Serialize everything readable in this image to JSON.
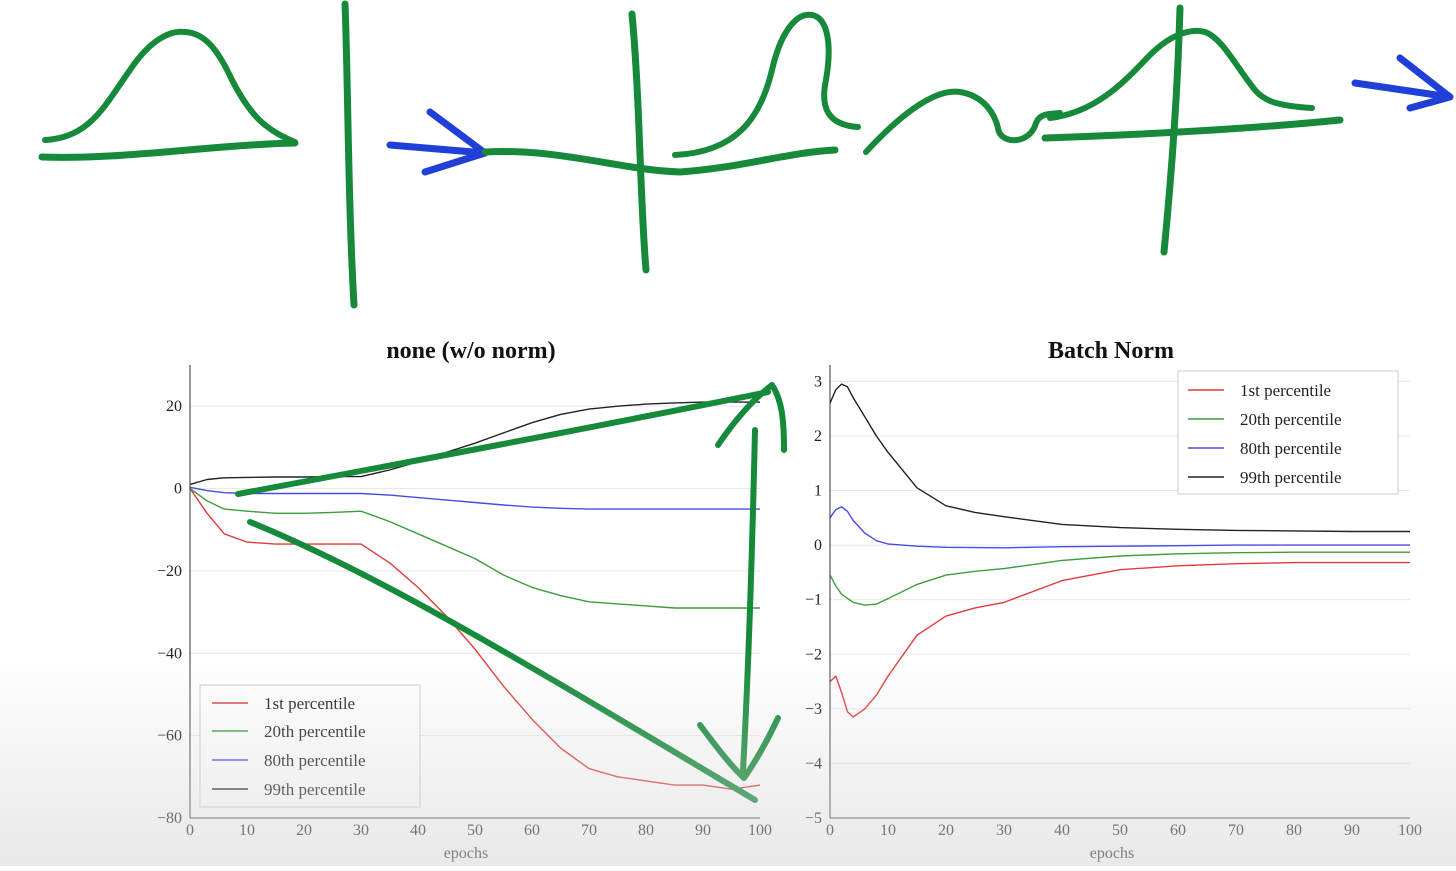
{
  "colors": {
    "ink_green": "#168a3a",
    "ink_blue": "#1f3fd6",
    "p1": "#e03b3b",
    "p20": "#3f9b3f",
    "p80": "#4a4ae6",
    "p99": "#222222"
  },
  "chart_data": [
    {
      "type": "line",
      "title": "none (w/o norm)",
      "xlabel": "epochs",
      "ylabel": "",
      "xlim": [
        0,
        100
      ],
      "ylim": [
        -80,
        30
      ],
      "xticks": [
        0,
        10,
        20,
        30,
        40,
        50,
        60,
        70,
        80,
        90,
        100
      ],
      "yticks": [
        -80,
        -60,
        -40,
        -20,
        0,
        20
      ],
      "grid": true,
      "legend_position": "lower-left",
      "series": [
        {
          "name": "1st percentile",
          "color": "#e03b3b",
          "x": [
            0,
            3,
            6,
            10,
            15,
            20,
            25,
            30,
            35,
            40,
            45,
            50,
            55,
            60,
            65,
            70,
            75,
            80,
            85,
            90,
            95,
            100
          ],
          "y": [
            0,
            -6,
            -11,
            -13,
            -13.5,
            -13.5,
            -13.5,
            -13.5,
            -18,
            -24,
            -31,
            -39,
            -48,
            -56,
            -63,
            -68,
            -70,
            -71,
            -72,
            -72,
            -73,
            -72
          ]
        },
        {
          "name": "20th percentile",
          "color": "#3f9b3f",
          "x": [
            0,
            3,
            6,
            10,
            15,
            20,
            25,
            30,
            35,
            40,
            45,
            50,
            55,
            60,
            65,
            70,
            75,
            80,
            85,
            90,
            95,
            100
          ],
          "y": [
            0,
            -3,
            -5,
            -5.5,
            -6,
            -6,
            -5.8,
            -5.5,
            -8,
            -11,
            -14,
            -17,
            -21,
            -24,
            -26,
            -27.5,
            -28,
            -28.5,
            -29,
            -29,
            -29,
            -29
          ]
        },
        {
          "name": "80th percentile",
          "color": "#4a4ae6",
          "x": [
            0,
            3,
            6,
            10,
            15,
            20,
            25,
            30,
            35,
            40,
            45,
            50,
            55,
            60,
            65,
            70,
            75,
            80,
            85,
            90,
            95,
            100
          ],
          "y": [
            0.3,
            -0.5,
            -1,
            -1.2,
            -1.2,
            -1.2,
            -1.2,
            -1.2,
            -1.6,
            -2.2,
            -2.8,
            -3.4,
            -4,
            -4.5,
            -4.8,
            -5,
            -5,
            -5,
            -5,
            -5,
            -5,
            -5
          ]
        },
        {
          "name": "99th percentile",
          "color": "#222222",
          "x": [
            0,
            3,
            6,
            10,
            15,
            20,
            25,
            30,
            35,
            40,
            45,
            50,
            55,
            60,
            65,
            70,
            75,
            80,
            85,
            90,
            95,
            100
          ],
          "y": [
            1,
            2.2,
            2.6,
            2.7,
            2.8,
            2.8,
            2.9,
            2.9,
            4.5,
            6.5,
            8.8,
            11,
            13.5,
            16,
            18,
            19.3,
            20,
            20.5,
            20.8,
            21,
            21,
            21
          ]
        }
      ]
    },
    {
      "type": "line",
      "title": "Batch Norm",
      "xlabel": "epochs",
      "ylabel": "",
      "xlim": [
        0,
        100
      ],
      "ylim": [
        -5,
        3.3
      ],
      "xticks": [
        0,
        10,
        20,
        30,
        40,
        50,
        60,
        70,
        80,
        90,
        100
      ],
      "yticks": [
        -5,
        -4,
        -3,
        -2,
        -1,
        0,
        1,
        2,
        3
      ],
      "grid": true,
      "legend_position": "top-right",
      "series": [
        {
          "name": "1st percentile",
          "color": "#e03b3b",
          "x": [
            0,
            1,
            2,
            3,
            4,
            6,
            8,
            10,
            15,
            20,
            25,
            30,
            40,
            50,
            60,
            70,
            80,
            90,
            100
          ],
          "y": [
            -2.5,
            -2.4,
            -2.7,
            -3.05,
            -3.15,
            -3.0,
            -2.75,
            -2.4,
            -1.65,
            -1.3,
            -1.15,
            -1.05,
            -0.65,
            -0.45,
            -0.38,
            -0.34,
            -0.32,
            -0.32,
            -0.32
          ]
        },
        {
          "name": "20th percentile",
          "color": "#3f9b3f",
          "x": [
            0,
            1,
            2,
            4,
            6,
            8,
            10,
            15,
            20,
            25,
            30,
            40,
            50,
            60,
            70,
            80,
            90,
            100
          ],
          "y": [
            -0.55,
            -0.75,
            -0.9,
            -1.05,
            -1.1,
            -1.08,
            -0.98,
            -0.72,
            -0.55,
            -0.48,
            -0.43,
            -0.28,
            -0.2,
            -0.16,
            -0.14,
            -0.13,
            -0.13,
            -0.13
          ]
        },
        {
          "name": "80th percentile",
          "color": "#4a4ae6",
          "x": [
            0,
            1,
            2,
            3,
            4,
            6,
            8,
            10,
            15,
            20,
            30,
            40,
            50,
            60,
            70,
            80,
            90,
            100
          ],
          "y": [
            0.5,
            0.65,
            0.7,
            0.62,
            0.45,
            0.22,
            0.08,
            0.02,
            -0.02,
            -0.04,
            -0.05,
            -0.03,
            -0.02,
            -0.01,
            0,
            0,
            0,
            0
          ]
        },
        {
          "name": "99th percentile",
          "color": "#222222",
          "x": [
            0,
            1,
            2,
            3,
            4,
            6,
            8,
            10,
            15,
            20,
            25,
            30,
            40,
            50,
            60,
            70,
            80,
            90,
            100
          ],
          "y": [
            2.6,
            2.85,
            2.95,
            2.9,
            2.7,
            2.35,
            2.0,
            1.7,
            1.05,
            0.72,
            0.6,
            0.52,
            0.38,
            0.32,
            0.29,
            0.27,
            0.26,
            0.25,
            0.25
          ]
        }
      ]
    }
  ]
}
